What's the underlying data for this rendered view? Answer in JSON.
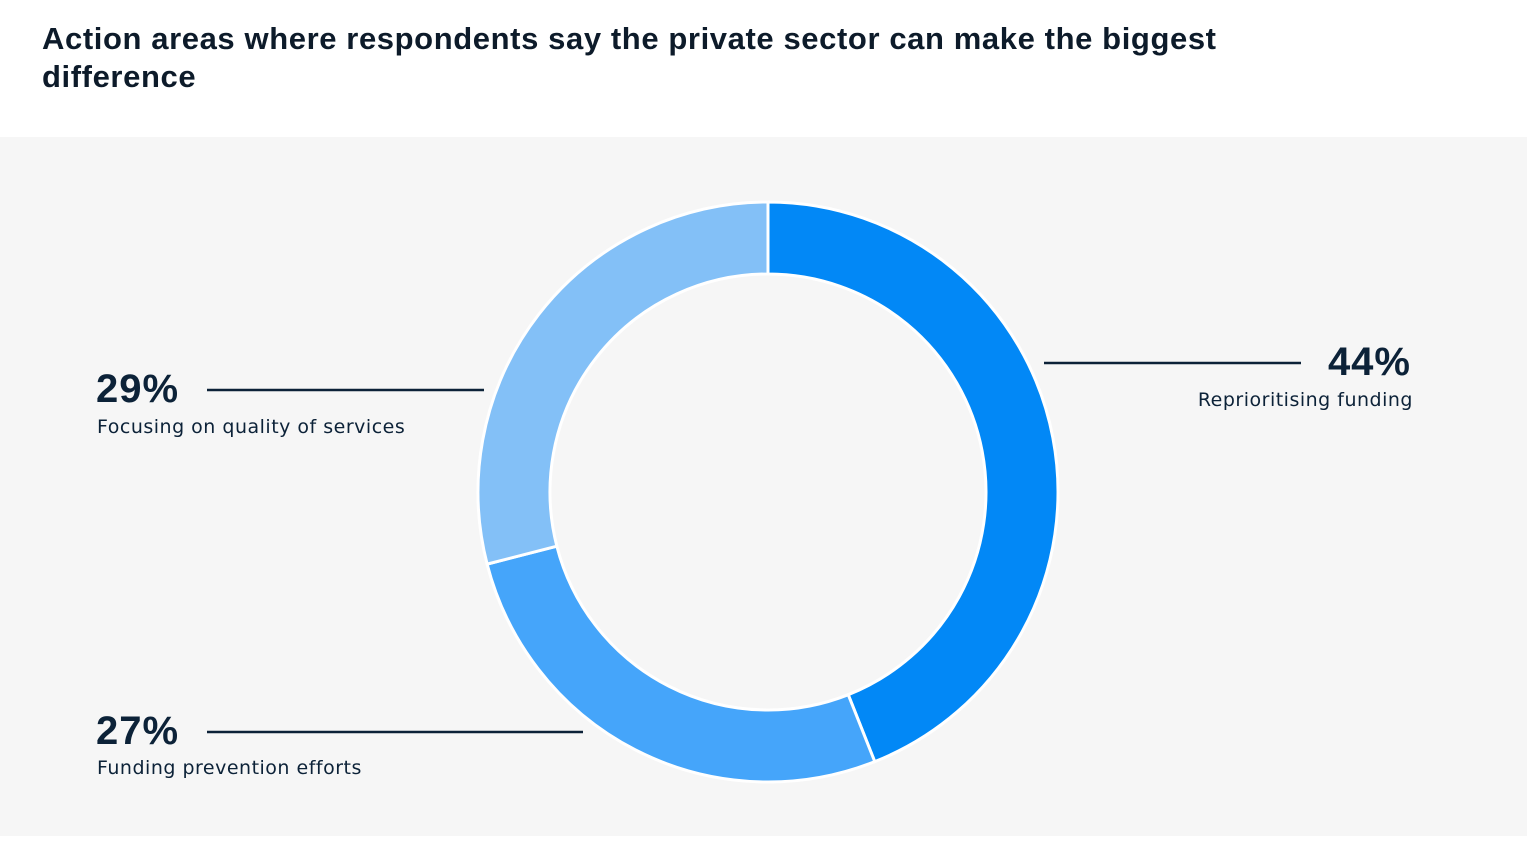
{
  "chart_data": {
    "type": "pie",
    "variant": "donut",
    "title": "Action areas where respondents say the private sector can make the biggest difference",
    "categories": [
      "Reprioritising funding",
      "Funding prevention efforts",
      "Focusing on quality of services"
    ],
    "values": [
      44,
      27,
      29
    ],
    "value_labels": [
      "44%",
      "27%",
      "29%"
    ],
    "unit": "%",
    "colors": [
      "#0288f6",
      "#45a5fa",
      "#83c0f7"
    ],
    "background": "#f6f6f6",
    "leader_line_color": "#0c2238"
  }
}
